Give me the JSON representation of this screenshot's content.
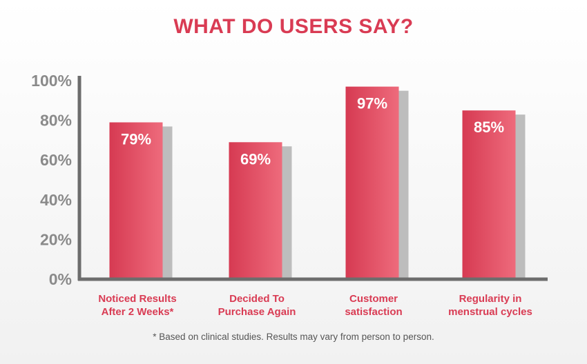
{
  "colors": {
    "accent": "#d93b53",
    "bar_light": "#ee6b7c",
    "bar_dark": "#d63a52",
    "shadow": "#bdbdbd",
    "axis": "#6d6d6d"
  },
  "footnote": "* Based on clinical studies. Results may vary from person to person.",
  "chart_data": {
    "type": "bar",
    "title": "WHAT DO USERS SAY?",
    "categories": [
      [
        "Noticed Results",
        "After 2 Weeks*"
      ],
      [
        "Decided To",
        "Purchase Again"
      ],
      [
        "Customer",
        "satisfaction"
      ],
      [
        "Regularity in",
        "menstrual cycles"
      ]
    ],
    "values": [
      79,
      69,
      97,
      85
    ],
    "value_labels": [
      "79%",
      "69%",
      "97%",
      "85%"
    ],
    "ylim": [
      0,
      100
    ],
    "yticks": [
      0,
      20,
      40,
      60,
      80,
      100
    ],
    "ytick_labels": [
      "0%",
      "20%",
      "40%",
      "60%",
      "80%",
      "100%"
    ],
    "xlabel": "",
    "ylabel": "",
    "grid": false,
    "legend": "none"
  }
}
